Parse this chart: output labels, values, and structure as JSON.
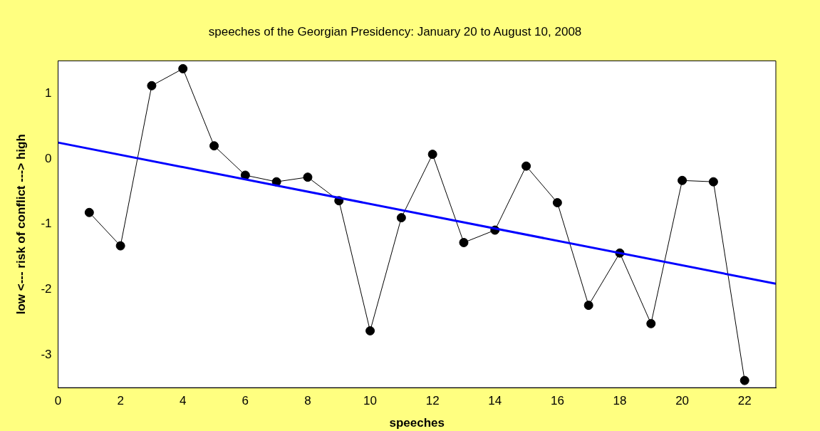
{
  "chart_data": {
    "type": "line",
    "title": "speeches of the Georgian Presidency: January 20 to August 10, 2008",
    "xlabel": "speeches",
    "ylabel": "low <--- risk of conflict ---> high",
    "x": [
      1,
      2,
      3,
      4,
      5,
      6,
      7,
      8,
      9,
      10,
      11,
      12,
      13,
      14,
      15,
      16,
      17,
      18,
      19,
      20,
      21,
      22
    ],
    "series": [
      {
        "color": "#000000",
        "marker": "circle",
        "values": [
          -0.82,
          -1.33,
          1.12,
          1.38,
          0.2,
          -0.25,
          -0.35,
          -0.28,
          -0.64,
          -2.63,
          -0.9,
          0.07,
          -1.28,
          -1.09,
          -0.11,
          -0.67,
          -2.24,
          -1.44,
          -2.52,
          -0.33,
          -0.35,
          -3.39
        ]
      },
      {
        "type": "line",
        "color": "#0000ff",
        "marker": "none",
        "x": [
          0,
          23
        ],
        "values": [
          0.25,
          -1.91
        ]
      }
    ],
    "xlim": [
      0,
      23
    ],
    "xticks": [
      0,
      2,
      4,
      6,
      8,
      10,
      12,
      14,
      16,
      18,
      20,
      22
    ],
    "ylim": [
      -3.5,
      1.5
    ],
    "yticks": [
      -3,
      -2,
      -1,
      0,
      1
    ],
    "grid": false,
    "legend": false
  }
}
